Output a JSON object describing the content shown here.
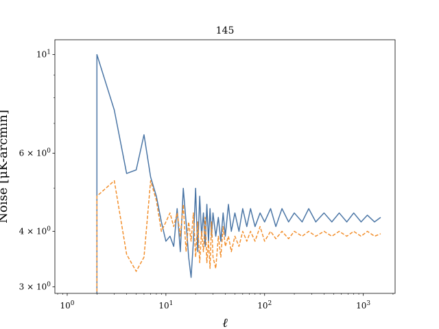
{
  "chart_data": {
    "type": "line",
    "title": "145",
    "xlabel": "ℓ",
    "ylabel": "Noise [μK-arcmin]",
    "xscale": "log",
    "yscale": "log",
    "xlim": [
      0.75,
      2100
    ],
    "ylim": [
      2.9,
      10.8
    ],
    "grid": false,
    "x_ticks": [
      {
        "value": 1,
        "base": "10",
        "exp": "0"
      },
      {
        "value": 10,
        "base": "10",
        "exp": "1"
      },
      {
        "value": 100,
        "base": "10",
        "exp": "2"
      },
      {
        "value": 1000,
        "base": "10",
        "exp": "3"
      }
    ],
    "y_ticks": [
      {
        "value": 3,
        "mant": "3",
        "times": "×",
        "base": "10",
        "exp": "0"
      },
      {
        "value": 4,
        "mant": "4",
        "times": "×",
        "base": "10",
        "exp": "0"
      },
      {
        "value": 6,
        "mant": "6",
        "times": "×",
        "base": "10",
        "exp": "0"
      },
      {
        "value": 10,
        "mant": "",
        "times": "",
        "base": "10",
        "exp": "1"
      }
    ],
    "series": [
      {
        "color": "#4a75a5",
        "style": "solid",
        "x": [
          2,
          2,
          3,
          4,
          5,
          6,
          7,
          8,
          9,
          10,
          11,
          12,
          13,
          14,
          15,
          16,
          17,
          18,
          19,
          20,
          21,
          22,
          23,
          24,
          25,
          26,
          27,
          28,
          29,
          30,
          32,
          34,
          36,
          38,
          40,
          43,
          46,
          50,
          55,
          60,
          66,
          72,
          80,
          90,
          100,
          115,
          130,
          150,
          175,
          200,
          240,
          280,
          330,
          400,
          480,
          570,
          680,
          800,
          950,
          1100,
          1300,
          1500
        ],
        "y": [
          2.9,
          10.0,
          7.5,
          5.4,
          5.5,
          6.6,
          5.3,
          4.8,
          4.2,
          3.8,
          3.9,
          3.7,
          4.5,
          3.6,
          5.0,
          4.2,
          3.5,
          3.15,
          3.8,
          5.0,
          3.6,
          4.8,
          3.9,
          4.4,
          3.7,
          4.6,
          3.8,
          4.5,
          3.9,
          4.4,
          3.9,
          4.3,
          3.8,
          4.4,
          3.9,
          4.6,
          4.0,
          4.4,
          4.0,
          4.5,
          4.1,
          4.5,
          4.1,
          4.4,
          4.2,
          4.5,
          4.1,
          4.5,
          4.2,
          4.4,
          4.2,
          4.5,
          4.2,
          4.4,
          4.2,
          4.4,
          4.2,
          4.4,
          4.2,
          4.35,
          4.2,
          4.3
        ]
      },
      {
        "color": "#f28e2b",
        "style": "dashed",
        "x": [
          2,
          2,
          3,
          4,
          5,
          6,
          7,
          8,
          9,
          10,
          11,
          12,
          13,
          14,
          15,
          16,
          17,
          18,
          19,
          20,
          21,
          22,
          23,
          24,
          25,
          26,
          27,
          28,
          29,
          30,
          32,
          34,
          36,
          38,
          40,
          43,
          46,
          50,
          55,
          60,
          66,
          72,
          80,
          90,
          100,
          115,
          130,
          150,
          175,
          200,
          240,
          280,
          330,
          400,
          480,
          570,
          680,
          800,
          950,
          1100,
          1300,
          1500
        ],
        "y": [
          2.85,
          4.8,
          5.2,
          3.55,
          3.25,
          3.5,
          5.2,
          4.7,
          4.0,
          4.2,
          4.4,
          4.1,
          4.4,
          3.9,
          4.6,
          3.6,
          4.2,
          3.8,
          4.4,
          3.5,
          4.2,
          3.4,
          4.0,
          3.6,
          4.3,
          3.4,
          3.8,
          3.3,
          4.2,
          3.5,
          3.3,
          3.9,
          3.5,
          4.1,
          3.7,
          3.9,
          3.6,
          3.9,
          3.7,
          4.0,
          3.8,
          4.0,
          3.8,
          4.1,
          3.8,
          4.0,
          3.85,
          4.0,
          3.85,
          4.0,
          3.9,
          4.0,
          3.9,
          4.0,
          3.9,
          4.0,
          3.9,
          4.0,
          3.9,
          4.0,
          3.9,
          3.95
        ]
      }
    ]
  }
}
